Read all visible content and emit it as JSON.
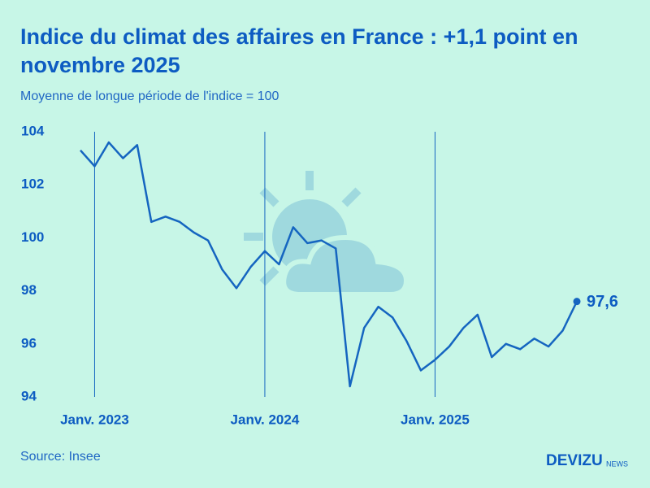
{
  "chart_data": {
    "type": "line",
    "title": "Indice du climat des affaires en France : +1,1 point en novembre 2025",
    "subtitle": "Moyenne de longue période de l'indice = 100",
    "x": [
      "2022-12",
      "2023-01",
      "2023-02",
      "2023-03",
      "2023-04",
      "2023-05",
      "2023-06",
      "2023-07",
      "2023-08",
      "2023-09",
      "2023-10",
      "2023-11",
      "2023-12",
      "2024-01",
      "2024-02",
      "2024-03",
      "2024-04",
      "2024-05",
      "2024-06",
      "2024-07",
      "2024-08",
      "2024-09",
      "2024-10",
      "2024-11",
      "2024-12",
      "2025-01",
      "2025-02",
      "2025-03",
      "2025-04",
      "2025-05",
      "2025-06",
      "2025-07",
      "2025-08",
      "2025-09",
      "2025-10",
      "2025-11"
    ],
    "values": [
      103.3,
      102.7,
      103.6,
      103.0,
      103.5,
      100.6,
      100.8,
      100.6,
      100.2,
      99.9,
      98.8,
      98.1,
      98.9,
      99.5,
      99.0,
      100.4,
      99.8,
      99.9,
      99.6,
      94.4,
      96.6,
      97.4,
      97.0,
      96.1,
      95.0,
      95.4,
      95.9,
      96.6,
      97.1,
      95.5,
      96.0,
      95.8,
      96.2,
      95.9,
      96.5,
      97.6
    ],
    "value_labels": [
      null,
      null,
      null,
      null,
      null,
      null,
      null,
      null,
      null,
      null,
      null,
      null,
      null,
      null,
      null,
      null,
      null,
      null,
      null,
      null,
      null,
      null,
      null,
      null,
      null,
      null,
      null,
      null,
      null,
      null,
      null,
      null,
      null,
      null,
      null,
      "97,6"
    ],
    "color": "#1565c0",
    "ylim": [
      94,
      104
    ],
    "yticks": [
      94,
      96,
      98,
      100,
      102,
      104
    ],
    "xticks": [
      {
        "value": "2023-01",
        "label": "Janv. 2023"
      },
      {
        "value": "2024-01",
        "label": "Janv. 2024"
      },
      {
        "value": "2025-01",
        "label": "Janv. 2025"
      }
    ],
    "grid": "x"
  },
  "source": "Source: Insee",
  "logo": {
    "name": "DEVIZU",
    "suffix": "NEWS"
  }
}
